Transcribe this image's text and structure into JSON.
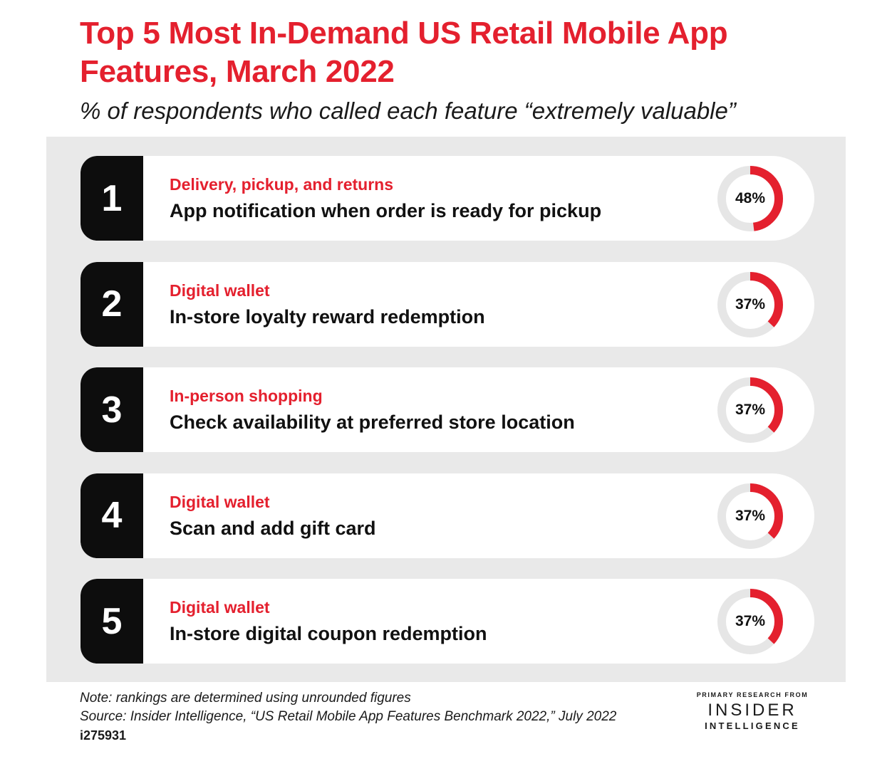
{
  "chart_data": {
    "type": "table",
    "title": "Top 5 Most In-Demand US Retail Mobile App Features, March 2022",
    "subtitle": "% of respondents who called each feature “extremely valuable”",
    "rows": [
      {
        "rank": "1",
        "category": "Delivery, pickup, and returns",
        "feature": "App notification when order is ready for pickup",
        "value": 48,
        "value_label": "48%"
      },
      {
        "rank": "2",
        "category": "Digital wallet",
        "feature": "In-store loyalty reward redemption",
        "value": 37,
        "value_label": "37%"
      },
      {
        "rank": "3",
        "category": "In-person shopping",
        "feature": "Check availability at preferred store location",
        "value": 37,
        "value_label": "37%"
      },
      {
        "rank": "4",
        "category": "Digital wallet",
        "feature": "Scan and add gift card",
        "value": 37,
        "value_label": "37%"
      },
      {
        "rank": "5",
        "category": "Digital wallet",
        "feature": "In-store digital coupon redemption",
        "value": 37,
        "value_label": "37%"
      }
    ],
    "value_max": 100,
    "colors": {
      "accent": "#e4202e",
      "track": "#e6e6e6",
      "rank_bg": "#0d0d0d",
      "panel_bg": "#e9e9e9"
    }
  },
  "footer": {
    "note": "Note: rankings are determined using unrounded figures",
    "source": "Source: Insider Intelligence, “US Retail Mobile App Features Benchmark 2022,” July 2022",
    "chart_id": "i275931"
  },
  "brand": {
    "tagline": "PRIMARY RESEARCH FROM",
    "name_line1": "INSIDER",
    "name_line2": "INTELLIGENCE"
  }
}
